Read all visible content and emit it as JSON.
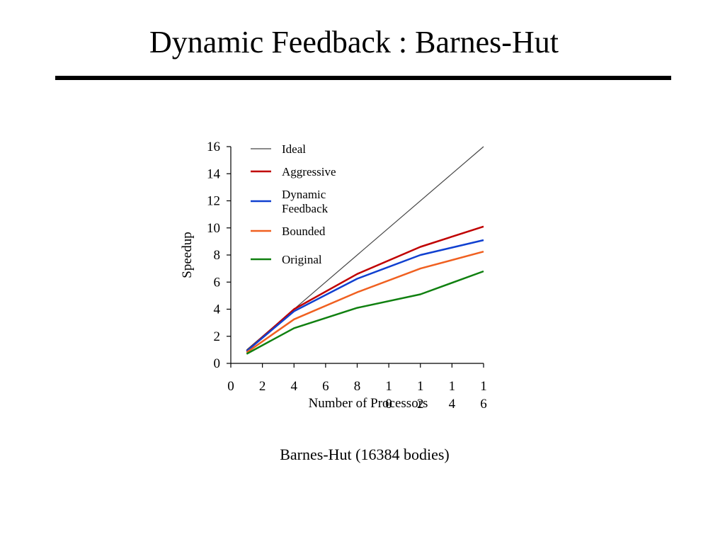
{
  "slide": {
    "title": "Dynamic Feedback : Barnes-Hut",
    "caption": "Barnes-Hut (16384 bodies)"
  },
  "chart_data": {
    "type": "line",
    "title": "",
    "xlabel": "Number of Processors",
    "ylabel": "Speedup",
    "xlim": [
      0,
      16
    ],
    "ylim": [
      0,
      16
    ],
    "x_ticks": [
      0,
      2,
      4,
      6,
      8,
      10,
      12,
      14,
      16
    ],
    "x_tick_labels": [
      "0",
      "2",
      "4",
      "6",
      "8",
      "1\n0",
      "1\n2",
      "1\n4",
      "1\n6"
    ],
    "y_ticks": [
      0,
      2,
      4,
      6,
      8,
      10,
      12,
      14,
      16
    ],
    "grid": false,
    "legend_position": "top-left inside",
    "series": [
      {
        "name": "Ideal",
        "color": "#444444",
        "width": 1.2,
        "x": [
          1,
          16
        ],
        "y": [
          1,
          16
        ]
      },
      {
        "name": "Aggressive",
        "color": "#c00000",
        "width": 2.5,
        "x": [
          1,
          4,
          8,
          12,
          16
        ],
        "y": [
          0.9,
          4.0,
          6.6,
          8.6,
          10.1
        ]
      },
      {
        "name": "Dynamic\nFeedback",
        "color": "#1040d0",
        "width": 2.5,
        "x": [
          1,
          4,
          8,
          12,
          16
        ],
        "y": [
          0.9,
          3.85,
          6.25,
          8.0,
          9.1
        ]
      },
      {
        "name": "Bounded",
        "color": "#f06020",
        "width": 2.5,
        "x": [
          1,
          4,
          8,
          12,
          16
        ],
        "y": [
          0.8,
          3.25,
          5.25,
          7.0,
          8.25
        ]
      },
      {
        "name": "Original",
        "color": "#108010",
        "width": 2.5,
        "x": [
          1,
          4,
          8,
          12,
          16
        ],
        "y": [
          0.7,
          2.6,
          4.1,
          5.1,
          6.8
        ]
      }
    ]
  }
}
